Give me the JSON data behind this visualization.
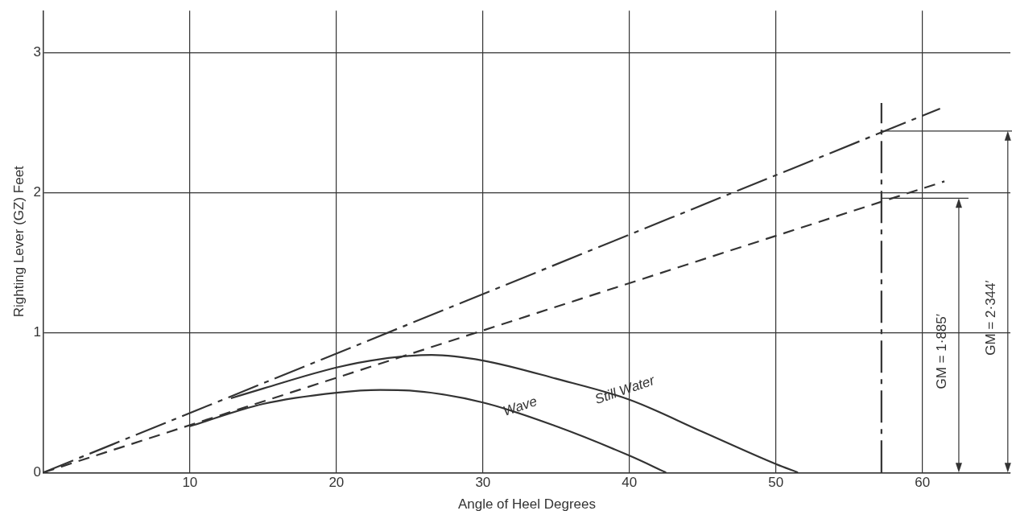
{
  "chart_data": {
    "type": "line",
    "xlabel": "Angle of Heel Degrees",
    "ylabel": "Righting Lever (GZ) Feet",
    "xlim": [
      0,
      66
    ],
    "ylim": [
      0,
      3.3
    ],
    "xticks": [
      {
        "value": 0,
        "label": null
      },
      10,
      20,
      30,
      40,
      50,
      60
    ],
    "yticks": [
      0,
      1,
      2,
      3
    ],
    "grid": true,
    "legend": false,
    "marker": "none",
    "series": [
      {
        "color": "#333333",
        "line_style": "solid",
        "x": [
          12.8,
          15,
          20,
          23,
          26.5,
          30,
          35,
          40,
          45,
          50,
          51.5
        ],
        "values": [
          0.53,
          0.6,
          0.75,
          0.81,
          0.84,
          0.8,
          0.67,
          0.52,
          0.29,
          0.06,
          0
        ]
      },
      {
        "color": "#333333",
        "line_style": "solid",
        "x": [
          10,
          15,
          20,
          23,
          25,
          30,
          35,
          40,
          42.5
        ],
        "values": [
          0.33,
          0.49,
          0.57,
          0.59,
          0.585,
          0.5,
          0.33,
          0.12,
          0
        ]
      },
      {
        "color": "#333333",
        "line_style": "dashdot",
        "x": [
          0,
          61.2
        ],
        "values": [
          0,
          2.6
        ]
      },
      {
        "color": "#333333",
        "line_style": "dashed",
        "x": [
          0,
          61.5
        ],
        "values": [
          0,
          2.08
        ]
      }
    ],
    "ref_lines": [
      {
        "axis": "x",
        "value": 57.2,
        "line_style": "dashdot"
      },
      {
        "axis": "y",
        "value": 1.96
      },
      {
        "axis": "y",
        "value": 2.44
      }
    ],
    "annotations": [
      "Still Water",
      "Wave",
      "GM = 1·885′",
      "GM = 2·344′"
    ]
  }
}
